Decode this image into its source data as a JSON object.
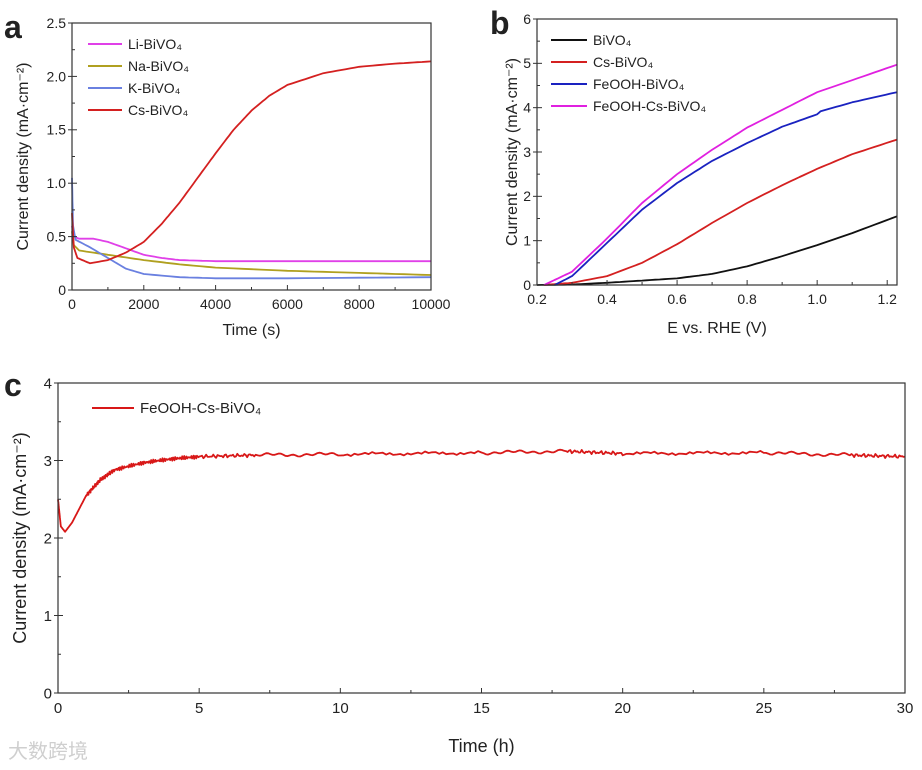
{
  "watermark": "大数跨境",
  "chart_data": [
    {
      "panel": "a",
      "type": "line",
      "xlabel": "Time (s)",
      "ylabel": "Current density (mA·cm⁻²)",
      "xlim": [
        0,
        10000
      ],
      "ylim": [
        0,
        2.5
      ],
      "xticks": [
        0,
        2000,
        4000,
        6000,
        8000,
        10000
      ],
      "xtick_labels": [
        "0",
        "2000",
        "4000",
        "6000",
        "8000",
        "10000"
      ],
      "yticks": [
        0,
        0.5,
        1.0,
        1.5,
        2.0,
        2.5
      ],
      "ytick_labels": [
        "0",
        "0.5",
        "1.0",
        "1.5",
        "2.0",
        "2.5"
      ],
      "legend": "top-left",
      "series": [
        {
          "name": "Li-BiVO₄",
          "color": "#e040e8",
          "points": [
            [
              0,
              0.6
            ],
            [
              50,
              0.5
            ],
            [
              200,
              0.48
            ],
            [
              600,
              0.48
            ],
            [
              1000,
              0.45
            ],
            [
              1500,
              0.39
            ],
            [
              2000,
              0.33
            ],
            [
              2500,
              0.3
            ],
            [
              3000,
              0.28
            ],
            [
              4000,
              0.27
            ],
            [
              6000,
              0.27
            ],
            [
              8000,
              0.27
            ],
            [
              10000,
              0.27
            ]
          ]
        },
        {
          "name": "Na-BiVO₄",
          "color": "#b0a020",
          "points": [
            [
              0,
              0.55
            ],
            [
              50,
              0.42
            ],
            [
              200,
              0.37
            ],
            [
              1000,
              0.33
            ],
            [
              2000,
              0.28
            ],
            [
              3000,
              0.24
            ],
            [
              4000,
              0.21
            ],
            [
              6000,
              0.18
            ],
            [
              8000,
              0.16
            ],
            [
              10000,
              0.14
            ]
          ]
        },
        {
          "name": "K-BiVO₄",
          "color": "#6a80e0",
          "points": [
            [
              0,
              1.05
            ],
            [
              30,
              0.6
            ],
            [
              100,
              0.47
            ],
            [
              500,
              0.4
            ],
            [
              1000,
              0.3
            ],
            [
              1500,
              0.2
            ],
            [
              2000,
              0.15
            ],
            [
              3000,
              0.12
            ],
            [
              4000,
              0.11
            ],
            [
              6000,
              0.11
            ],
            [
              10000,
              0.12
            ]
          ]
        },
        {
          "name": "Cs-BiVO₄",
          "color": "#d42020",
          "points": [
            [
              0,
              0.72
            ],
            [
              50,
              0.4
            ],
            [
              150,
              0.3
            ],
            [
              500,
              0.25
            ],
            [
              1000,
              0.28
            ],
            [
              1500,
              0.35
            ],
            [
              2000,
              0.45
            ],
            [
              2500,
              0.62
            ],
            [
              3000,
              0.82
            ],
            [
              3500,
              1.05
            ],
            [
              4000,
              1.28
            ],
            [
              4500,
              1.5
            ],
            [
              5000,
              1.68
            ],
            [
              5500,
              1.82
            ],
            [
              6000,
              1.92
            ],
            [
              7000,
              2.03
            ],
            [
              8000,
              2.09
            ],
            [
              9000,
              2.12
            ],
            [
              10000,
              2.14
            ]
          ]
        }
      ]
    },
    {
      "panel": "b",
      "type": "line",
      "xlabel": "E vs. RHE (V)",
      "ylabel": "Current density (mA·cm⁻²)",
      "xlim": [
        0.2,
        1.228
      ],
      "ylim": [
        0,
        6
      ],
      "xticks": [
        0.2,
        0.4,
        0.6,
        0.8,
        1.0,
        1.2
      ],
      "xtick_labels": [
        "0.2",
        "0.4",
        "0.6",
        "0.8",
        "1.0",
        "1.2"
      ],
      "yticks": [
        0,
        1,
        2,
        3,
        4,
        5,
        6
      ],
      "ytick_labels": [
        "0",
        "1",
        "2",
        "3",
        "4",
        "5",
        "6"
      ],
      "legend": "top-left",
      "series": [
        {
          "name": "BiVO₄",
          "color": "#111111",
          "points": [
            [
              0.2,
              0
            ],
            [
              0.3,
              0.01
            ],
            [
              0.4,
              0.05
            ],
            [
              0.5,
              0.1
            ],
            [
              0.6,
              0.15
            ],
            [
              0.7,
              0.25
            ],
            [
              0.8,
              0.42
            ],
            [
              0.9,
              0.65
            ],
            [
              1.0,
              0.9
            ],
            [
              1.1,
              1.17
            ],
            [
              1.228,
              1.55
            ]
          ]
        },
        {
          "name": "Cs-BiVO₄",
          "color": "#d42020",
          "points": [
            [
              0.22,
              0
            ],
            [
              0.3,
              0.05
            ],
            [
              0.4,
              0.2
            ],
            [
              0.5,
              0.5
            ],
            [
              0.6,
              0.92
            ],
            [
              0.7,
              1.4
            ],
            [
              0.8,
              1.85
            ],
            [
              0.9,
              2.25
            ],
            [
              1.0,
              2.62
            ],
            [
              1.1,
              2.95
            ],
            [
              1.228,
              3.28
            ]
          ]
        },
        {
          "name": "FeOOH-BiVO₄",
          "color": "#1a22c0",
          "points": [
            [
              0.25,
              0
            ],
            [
              0.3,
              0.2
            ],
            [
              0.4,
              0.95
            ],
            [
              0.5,
              1.7
            ],
            [
              0.6,
              2.3
            ],
            [
              0.7,
              2.8
            ],
            [
              0.8,
              3.2
            ],
            [
              0.9,
              3.57
            ],
            [
              1.0,
              3.85
            ],
            [
              1.01,
              3.92
            ],
            [
              1.1,
              4.12
            ],
            [
              1.228,
              4.35
            ]
          ]
        },
        {
          "name": "FeOOH-Cs-BiVO₄",
          "color": "#e020e0",
          "points": [
            [
              0.22,
              0
            ],
            [
              0.3,
              0.3
            ],
            [
              0.4,
              1.05
            ],
            [
              0.5,
              1.85
            ],
            [
              0.6,
              2.5
            ],
            [
              0.7,
              3.05
            ],
            [
              0.8,
              3.55
            ],
            [
              0.9,
              3.95
            ],
            [
              1.0,
              4.35
            ],
            [
              1.1,
              4.62
            ],
            [
              1.228,
              4.97
            ]
          ]
        }
      ]
    },
    {
      "panel": "c",
      "type": "line",
      "xlabel": "Time (h)",
      "ylabel": "Current density (mA·cm⁻²)",
      "xlim": [
        0,
        30
      ],
      "ylim": [
        0,
        4
      ],
      "xticks": [
        0,
        5,
        10,
        15,
        20,
        25,
        30
      ],
      "xtick_labels": [
        "0",
        "5",
        "10",
        "15",
        "20",
        "25",
        "30"
      ],
      "yticks": [
        0,
        1,
        2,
        3,
        4
      ],
      "ytick_labels": [
        "0",
        "1",
        "2",
        "3",
        "4"
      ],
      "legend": "top-left",
      "series": [
        {
          "name": "FeOOH-Cs-BiVO₄",
          "color": "#d81818",
          "points": [
            [
              0,
              2.5
            ],
            [
              0.1,
              2.15
            ],
            [
              0.25,
              2.08
            ],
            [
              0.5,
              2.2
            ],
            [
              1,
              2.55
            ],
            [
              1.5,
              2.75
            ],
            [
              2,
              2.88
            ],
            [
              3,
              2.97
            ],
            [
              4,
              3.02
            ],
            [
              5,
              3.05
            ],
            [
              7,
              3.07
            ],
            [
              10,
              3.08
            ],
            [
              15,
              3.1
            ],
            [
              18,
              3.12
            ],
            [
              20,
              3.09
            ],
            [
              25,
              3.1
            ],
            [
              28,
              3.07
            ],
            [
              30,
              3.05
            ]
          ]
        }
      ]
    }
  ]
}
